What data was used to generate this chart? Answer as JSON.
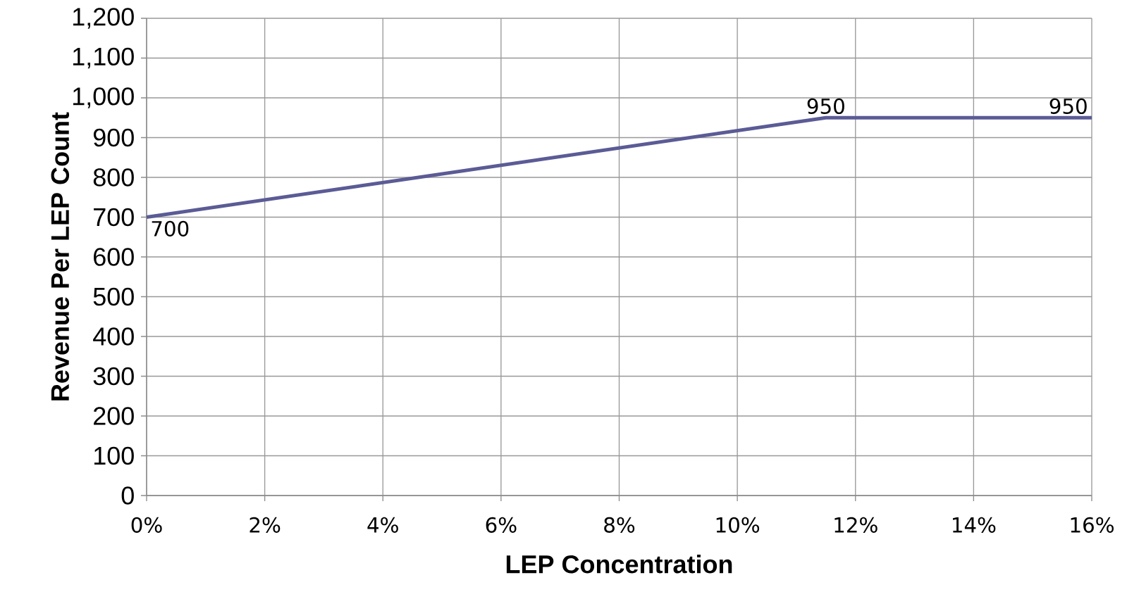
{
  "chart_data": {
    "type": "line",
    "xlabel": "LEP Concentration",
    "ylabel": "Revenue Per LEP Count",
    "x": [
      0,
      11.5,
      16
    ],
    "series": [
      {
        "color": "#5b5b96",
        "values": [
          700,
          950,
          950
        ]
      }
    ],
    "data_labels": true,
    "xlim": [
      0,
      16
    ],
    "xticks": [
      {
        "value": 0,
        "label": "0%"
      },
      {
        "value": 2,
        "label": "2%"
      },
      {
        "value": 4,
        "label": "4%"
      },
      {
        "value": 6,
        "label": "6%"
      },
      {
        "value": 8,
        "label": "8%"
      },
      {
        "value": 10,
        "label": "10%"
      },
      {
        "value": 12,
        "label": "12%"
      },
      {
        "value": 14,
        "label": "14%"
      },
      {
        "value": 16,
        "label": "16%"
      }
    ],
    "ylim": [
      0,
      1200
    ],
    "yticks": [
      0,
      100,
      200,
      300,
      400,
      500,
      600,
      700,
      800,
      900,
      {
        "value": 1000,
        "label": "1,000"
      },
      {
        "value": 1100,
        "label": "1,100"
      },
      {
        "value": 1200,
        "label": "1,200"
      }
    ],
    "grid": true,
    "marker": "none",
    "line_style": "solid"
  }
}
